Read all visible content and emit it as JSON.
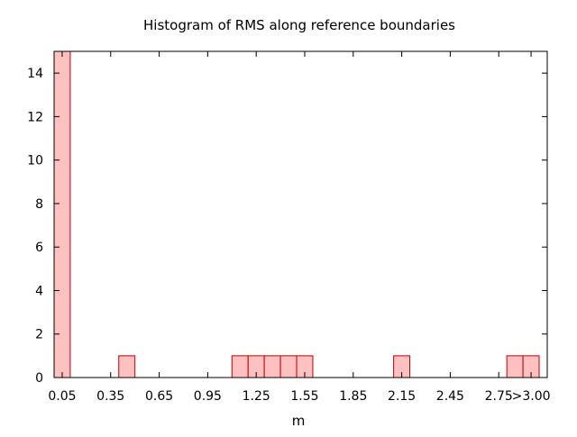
{
  "chart_data": {
    "type": "bar",
    "title": "Histogram of RMS along reference boundaries",
    "xlabel": "m",
    "ylabel": "",
    "bin_width": 0.1,
    "xlim": [
      0.0,
      3.05
    ],
    "ylim": [
      0,
      15
    ],
    "x_ticks": [
      {
        "value": 0.05,
        "label": "0.05"
      },
      {
        "value": 0.35,
        "label": "0.35"
      },
      {
        "value": 0.65,
        "label": "0.65"
      },
      {
        "value": 0.95,
        "label": "0.95"
      },
      {
        "value": 1.25,
        "label": "1.25"
      },
      {
        "value": 1.55,
        "label": "1.55"
      },
      {
        "value": 1.85,
        "label": "1.85"
      },
      {
        "value": 2.15,
        "label": "2.15"
      },
      {
        "value": 2.45,
        "label": "2.45"
      },
      {
        "value": 2.75,
        "label": "2.75"
      },
      {
        "value": 2.95,
        "label": ">3.00"
      }
    ],
    "y_ticks": [
      0,
      2,
      4,
      6,
      8,
      10,
      12,
      14
    ],
    "bins": [
      {
        "center": 0.05,
        "count": 15
      },
      {
        "center": 0.45,
        "count": 1
      },
      {
        "center": 1.15,
        "count": 1
      },
      {
        "center": 1.25,
        "count": 1
      },
      {
        "center": 1.35,
        "count": 1
      },
      {
        "center": 1.45,
        "count": 1
      },
      {
        "center": 1.55,
        "count": 1
      },
      {
        "center": 2.15,
        "count": 1
      },
      {
        "center": 2.85,
        "count": 1
      },
      {
        "center": 2.95,
        "count": 1
      }
    ],
    "grid": false,
    "colors": {
      "bar_fill": "#ffc0c0",
      "bar_stroke": "#c00000",
      "axis": "#000000"
    }
  }
}
